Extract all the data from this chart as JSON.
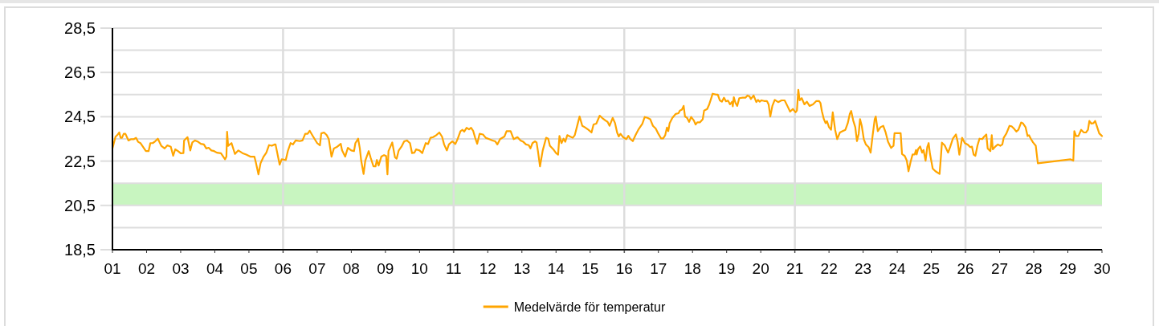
{
  "chart_data": {
    "type": "line",
    "xlim": [
      1,
      30
    ],
    "xticks": [
      {
        "value": 1,
        "label": "01"
      },
      {
        "value": 2,
        "label": "02"
      },
      {
        "value": 3,
        "label": "03"
      },
      {
        "value": 4,
        "label": "04"
      },
      {
        "value": 5,
        "label": "05"
      },
      {
        "value": 6,
        "label": "06"
      },
      {
        "value": 7,
        "label": "07"
      },
      {
        "value": 8,
        "label": "08"
      },
      {
        "value": 9,
        "label": "09"
      },
      {
        "value": 10,
        "label": "10"
      },
      {
        "value": 11,
        "label": "11"
      },
      {
        "value": 12,
        "label": "12"
      },
      {
        "value": 13,
        "label": "13"
      },
      {
        "value": 14,
        "label": "14"
      },
      {
        "value": 15,
        "label": "15"
      },
      {
        "value": 16,
        "label": "16"
      },
      {
        "value": 17,
        "label": "17"
      },
      {
        "value": 18,
        "label": "18"
      },
      {
        "value": 19,
        "label": "19"
      },
      {
        "value": 20,
        "label": "20"
      },
      {
        "value": 21,
        "label": "21"
      },
      {
        "value": 22,
        "label": "22"
      },
      {
        "value": 23,
        "label": "23"
      },
      {
        "value": 24,
        "label": "24"
      },
      {
        "value": 25,
        "label": "25"
      },
      {
        "value": 26,
        "label": "26"
      },
      {
        "value": 27,
        "label": "27"
      },
      {
        "value": 28,
        "label": "28"
      },
      {
        "value": 29,
        "label": "29"
      },
      {
        "value": 30,
        "label": "30"
      }
    ],
    "ylim": [
      18.5,
      28.5
    ],
    "yticks": [
      {
        "value": 18.5,
        "label": "18,5"
      },
      {
        "value": 19.5,
        "label": null
      },
      {
        "value": 20.5,
        "label": "20,5"
      },
      {
        "value": 21.5,
        "label": null
      },
      {
        "value": 22.5,
        "label": "22,5"
      },
      {
        "value": 23.5,
        "label": null
      },
      {
        "value": 24.5,
        "label": "24,5"
      },
      {
        "value": 25.5,
        "label": null
      },
      {
        "value": 26.5,
        "label": "26,5"
      },
      {
        "value": 27.5,
        "label": null
      },
      {
        "value": 28.5,
        "label": "28,5"
      }
    ],
    "grid": "y",
    "legend": "bottom",
    "bands": [
      {
        "axis": "y",
        "from": 20.5,
        "to": 21.5,
        "color": "#c8f5c0"
      }
    ],
    "ref_lines": [
      {
        "axis": "x",
        "value": 6,
        "color": "#dddddd"
      },
      {
        "axis": "x",
        "value": 11,
        "color": "#dddddd"
      },
      {
        "axis": "x",
        "value": 16,
        "color": "#dddddd"
      },
      {
        "axis": "x",
        "value": 21,
        "color": "#dddddd"
      },
      {
        "axis": "x",
        "value": 26,
        "color": "#dddddd"
      }
    ],
    "series": [
      {
        "name": "Medelvärde för temperatur",
        "color": "#ffa500",
        "x": [
          1,
          1.09,
          1.14,
          1.2,
          1.24,
          1.28,
          1.33,
          1.38,
          1.47,
          1.55,
          1.63,
          1.69,
          1.75,
          1.82,
          1.9,
          1.98,
          2.06,
          2.11,
          2.18,
          2.25,
          2.33,
          2.43,
          2.53,
          2.61,
          2.71,
          2.78,
          2.84,
          2.92,
          3,
          3.08,
          3.1,
          3.2,
          3.28,
          3.34,
          3.42,
          3.51,
          3.59,
          3.68,
          3.75,
          3.82,
          3.9,
          3.98,
          4.06,
          4.18,
          4.3,
          4.34,
          4.36,
          4.39,
          4.44,
          4.49,
          4.59,
          4.69,
          4.81,
          4.92,
          5.04,
          5.16,
          5.2,
          5.28,
          5.34,
          5.43,
          5.51,
          5.59,
          5.67,
          5.75,
          5.78,
          5.9,
          5.96,
          6.08,
          6.14,
          6.22,
          6.29,
          6.37,
          6.49,
          6.57,
          6.65,
          6.72,
          6.78,
          6.88,
          7,
          7.08,
          7.12,
          7.2,
          7.28,
          7.34,
          7.42,
          7.49,
          7.59,
          7.69,
          7.73,
          7.82,
          7.9,
          8,
          8.08,
          8.12,
          8.2,
          8.25,
          8.29,
          8.36,
          8.41,
          8.51,
          8.57,
          8.65,
          8.71,
          8.75,
          8.8,
          8.88,
          8.96,
          9.02,
          9.06,
          9.09,
          9.2,
          9.28,
          9.33,
          9.39,
          9.47,
          9.55,
          9.63,
          9.72,
          9.78,
          9.85,
          9.9,
          10,
          10.08,
          10.18,
          10.25,
          10.32,
          10.4,
          10.49,
          10.58,
          10.66,
          10.72,
          10.8,
          10.86,
          10.96,
          11.05,
          11.12,
          11.2,
          11.26,
          11.31,
          11.38,
          11.45,
          11.51,
          11.57,
          11.63,
          11.69,
          11.76,
          11.86,
          11.94,
          12.04,
          12.14,
          12.22,
          12.28,
          12.36,
          12.49,
          12.55,
          12.67,
          12.76,
          12.87,
          12.96,
          13.04,
          13.12,
          13.2,
          13.25,
          13.31,
          13.38,
          13.43,
          13.47,
          13.53,
          13.61,
          13.71,
          13.77,
          13.82,
          13.92,
          14,
          14.06,
          14.1,
          14.16,
          14.22,
          14.27,
          14.33,
          14.41,
          14.49,
          14.55,
          14.61,
          14.69,
          14.77,
          14.84,
          14.95,
          15.04,
          15.1,
          15.18,
          15.28,
          15.35,
          15.45,
          15.51,
          15.57,
          15.66,
          15.73,
          15.79,
          15.84,
          15.89,
          15.97,
          16.06,
          16.12,
          16.18,
          16.25,
          16.33,
          16.41,
          16.53,
          16.6,
          16.68,
          16.76,
          16.84,
          16.92,
          17,
          17.08,
          17.14,
          17.2,
          17.25,
          17.29,
          17.33,
          17.41,
          17.51,
          17.59,
          17.63,
          17.69,
          17.74,
          17.78,
          17.84,
          17.9,
          17.96,
          18.04,
          18.09,
          18.14,
          18.22,
          18.3,
          18.34,
          18.43,
          18.49,
          18.55,
          18.59,
          18.69,
          18.74,
          18.8,
          18.86,
          18.92,
          18.98,
          19.04,
          19.1,
          19.16,
          19.18,
          19.21,
          19.26,
          19.31,
          19.37,
          19.47,
          19.55,
          19.61,
          19.67,
          19.71,
          19.79,
          19.87,
          19.92,
          19.97,
          20.02,
          20.1,
          20.18,
          20.23,
          20.28,
          20.34,
          20.41,
          20.51,
          20.61,
          20.7,
          20.78,
          20.86,
          20.94,
          21.02,
          21.06,
          21.1,
          21.14,
          21.2,
          21.28,
          21.35,
          21.43,
          21.53,
          21.63,
          21.71,
          21.75,
          21.79,
          21.85,
          21.9,
          21.94,
          22,
          22.06,
          22.11,
          22.18,
          22.24,
          22.32,
          22.4,
          22.48,
          22.55,
          22.61,
          22.65,
          22.71,
          22.77,
          22.82,
          22.87,
          22.91,
          22.96,
          23.02,
          23.08,
          23.16,
          23.22,
          23.28,
          23.34,
          23.37,
          23.43,
          23.51,
          23.59,
          23.66,
          23.73,
          23.82,
          23.89,
          23.92,
          24.02,
          24.1,
          24.14,
          24.22,
          24.28,
          24.33,
          24.39,
          24.45,
          24.51,
          24.55,
          24.57,
          24.61,
          24.67,
          24.73,
          24.77,
          24.83,
          24.88,
          24.92,
          24.96,
          25.04,
          25.12,
          25.24,
          25.28,
          25.31,
          25.39,
          25.49,
          25.55,
          25.63,
          25.72,
          25.77,
          25.82,
          25.9,
          25.98,
          26.06,
          26.14,
          26.19,
          26.24,
          26.29,
          26.35,
          26.41,
          26.49,
          26.55,
          26.61,
          26.65,
          26.73,
          26.77,
          26.8,
          26.87,
          26.95,
          27.02,
          27.08,
          27.12,
          27.2,
          27.29,
          27.35,
          27.43,
          27.49,
          27.55,
          27.63,
          27.68,
          27.76,
          27.82,
          27.86,
          27.92,
          27.98,
          28.06,
          28.12,
          29.08,
          29.16,
          29.19,
          29.24,
          29.31,
          29.39,
          29.47,
          29.53,
          29.59,
          29.63,
          29.69,
          29.75,
          29.8,
          29.86,
          29.92,
          30
        ],
        "values": [
          23.07,
          23.6,
          23.67,
          23.79,
          23.55,
          23.55,
          23.73,
          23.73,
          23.43,
          23.49,
          23.49,
          23.55,
          23.37,
          23.31,
          23.13,
          22.95,
          22.95,
          23.31,
          23.31,
          23.39,
          23.51,
          23.19,
          23.07,
          23.21,
          23.15,
          22.74,
          23.03,
          22.95,
          22.85,
          22.86,
          23.43,
          23.58,
          22.98,
          23.34,
          23.43,
          23.37,
          23.28,
          23.25,
          23.07,
          23.1,
          22.98,
          22.95,
          22.88,
          22.85,
          22.58,
          22.7,
          23.82,
          23.19,
          23.25,
          23.31,
          22.82,
          22.98,
          22.86,
          22.79,
          22.7,
          22.7,
          22.46,
          21.9,
          22.4,
          22.7,
          22.88,
          23.22,
          23.19,
          23.25,
          23.25,
          22.34,
          22.58,
          22.55,
          22.95,
          23.31,
          23.25,
          23.43,
          23.4,
          23.43,
          23.73,
          23.73,
          23.87,
          23.61,
          23.31,
          23.21,
          23.75,
          23.79,
          23.67,
          23.49,
          22.7,
          23.07,
          23.15,
          23.28,
          22.98,
          22.7,
          23.1,
          22.98,
          22.95,
          23.31,
          23.51,
          23.07,
          22.52,
          21.92,
          22.52,
          22.95,
          22.64,
          22.26,
          22.26,
          22.55,
          22.3,
          22.7,
          22.77,
          22.73,
          21.9,
          22.95,
          23.34,
          22.67,
          22.61,
          22.98,
          23.15,
          23.39,
          23.43,
          23.31,
          22.86,
          22.88,
          23.03,
          22.98,
          22.86,
          23.31,
          23.27,
          23.55,
          23.58,
          23.67,
          23.79,
          23.6,
          23.25,
          22.98,
          23.25,
          23.39,
          23.27,
          23.51,
          23.85,
          23.91,
          23.83,
          24,
          23.93,
          24,
          23.87,
          23.55,
          23.28,
          23.73,
          23.7,
          23.55,
          23.49,
          23.43,
          23.39,
          23.25,
          23.49,
          23.61,
          23.85,
          23.85,
          23.49,
          23.58,
          23.43,
          23.37,
          23.25,
          23.22,
          23.07,
          23.31,
          23.39,
          23.34,
          22.95,
          22.26,
          22.98,
          23.55,
          23.51,
          23.19,
          23.03,
          22.86,
          22.79,
          23.63,
          23.31,
          23.51,
          23.37,
          23.67,
          23.61,
          23.55,
          23.67,
          24.03,
          24.51,
          24.09,
          24.03,
          23.91,
          23.79,
          24.15,
          24.19,
          24.55,
          24.45,
          24.33,
          24.27,
          24.09,
          24.45,
          24.21,
          23.79,
          23.61,
          23.73,
          23.57,
          23.49,
          23.64,
          23.49,
          23.4,
          23.67,
          23.91,
          24.18,
          24.49,
          24.45,
          24.39,
          24.09,
          23.97,
          23.73,
          23.52,
          23.52,
          23.67,
          24.01,
          23.85,
          24.21,
          24.45,
          24.63,
          24.66,
          24.78,
          24.82,
          24.99,
          24.51,
          24.45,
          24.27,
          24.49,
          24.33,
          24.15,
          24.25,
          24.25,
          24.39,
          24.78,
          24.85,
          25.06,
          25.34,
          25.54,
          25.5,
          25.5,
          25.24,
          25.18,
          25.36,
          25.2,
          25.23,
          25.06,
          25.18,
          24.97,
          25.38,
          25.12,
          24.99,
          25.34,
          25.36,
          25.36,
          25.46,
          25.42,
          25.3,
          25.46,
          25.16,
          25.26,
          25.18,
          25.24,
          25.21,
          25.21,
          25.06,
          24.51,
          24.99,
          25.26,
          25.16,
          25.24,
          25.24,
          24.99,
          24.73,
          24.85,
          24.7,
          24.78,
          25.72,
          25.24,
          25.34,
          25.06,
          25.18,
          24.99,
          25.06,
          25.21,
          25.21,
          25.12,
          24.76,
          24.39,
          24.21,
          24.3,
          24.03,
          23.91,
          24.7,
          23.91,
          23.49,
          23.79,
          23.85,
          23.91,
          24.21,
          24.63,
          24.76,
          24.33,
          24.03,
          23.4,
          23.73,
          24.39,
          24.09,
          23.49,
          23.25,
          23.13,
          22.88,
          23.67,
          24.39,
          24.51,
          23.85,
          24.03,
          24.09,
          23.79,
          23.37,
          23.09,
          23.19,
          23.76,
          23.76,
          23.76,
          22.82,
          22.73,
          22.52,
          22.04,
          22.46,
          22.8,
          22.8,
          23,
          22.8,
          23.04,
          23.16,
          22.88,
          23,
          22.52,
          23.13,
          23.31,
          22.82,
          22.16,
          22.04,
          21.92,
          22.7,
          23.33,
          23.21,
          22.88,
          23.13,
          23.51,
          23.7,
          23.37,
          22.79,
          23.55,
          23.31,
          23.25,
          23.13,
          23.15,
          22.79,
          22.74,
          23.19,
          23.51,
          23.49,
          23.61,
          23.7,
          23.07,
          22.95,
          23.67,
          23.03,
          23.15,
          23.25,
          23.19,
          23.25,
          23.55,
          23.75,
          24.09,
          24.07,
          23.95,
          23.83,
          23.91,
          24.24,
          24.21,
          24.03,
          23.63,
          23.67,
          23.49,
          23.34,
          23.19,
          22.4,
          22.58,
          22.52,
          23.85,
          23.63,
          23.63,
          23.91,
          23.79,
          23.79,
          23.91,
          24.31,
          24.19,
          24.21,
          24.31,
          24.03,
          23.75,
          23.63
        ]
      }
    ]
  }
}
